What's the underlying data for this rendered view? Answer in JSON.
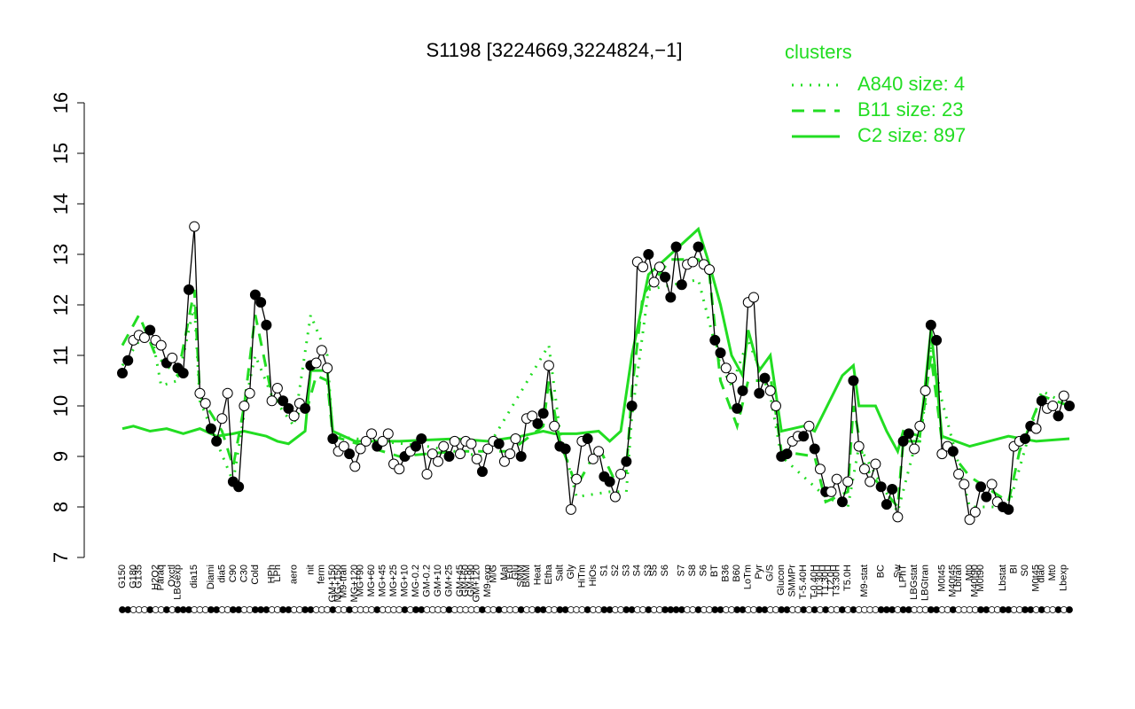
{
  "chart_data": {
    "type": "line",
    "title": "S1198 [3224669,3224824,−1]",
    "legend_title": "clusters",
    "legend_position": "top-right",
    "ylim": [
      7,
      16
    ],
    "yticks": [
      7,
      8,
      9,
      10,
      11,
      12,
      13,
      14,
      15,
      16
    ],
    "xlim": [
      0,
      171
    ],
    "color": "#000000",
    "categories": [
      "G150",
      null,
      "G180",
      "G135",
      null,
      null,
      "H2O2",
      "Paraq",
      null,
      "Oxctl",
      "LBGexp",
      null,
      null,
      "dia15",
      null,
      null,
      "Diami",
      null,
      "dia5",
      null,
      "C90",
      null,
      "C30",
      null,
      "Cold",
      null,
      null,
      "HPh",
      "LPh",
      null,
      null,
      "aero",
      null,
      null,
      "nit",
      null,
      "ferm",
      null,
      "GM+150",
      "MG+150",
      "M9-tran",
      null,
      "MG+120",
      "MG+90",
      null,
      "MG+60",
      null,
      "MG+45",
      null,
      "MG+25",
      null,
      "MG+10",
      null,
      "MG-0.2",
      null,
      "GM-0.2",
      null,
      "GM+10",
      null,
      "GM+25",
      null,
      "GM+45",
      "GM+60",
      "GM+90",
      "GM+120",
      null,
      "M9-exp",
      "M/G",
      null,
      "Mal",
      "Fru",
      "Glu",
      "SMM",
      "BMM",
      null,
      "Heat",
      null,
      "Etha",
      null,
      "Salt",
      null,
      "Gly",
      null,
      "HiTm",
      null,
      "HiOs",
      null,
      "S1",
      null,
      "S2",
      null,
      "S3",
      null,
      "S4",
      null,
      "S3",
      "S5",
      null,
      "S6",
      null,
      null,
      "S7",
      null,
      "S8",
      null,
      "S6",
      null,
      "BT",
      null,
      "B36",
      null,
      "B60",
      null,
      "LoTm",
      null,
      "Pyr",
      null,
      "G/S",
      null,
      "Glucon",
      null,
      "SMMPr",
      null,
      "T-5.40H",
      null,
      "T-0.40H",
      "T0.30H",
      "T1.30H",
      "T2.0H",
      "T3.30H",
      null,
      "T5.0H",
      null,
      null,
      "M9-stat",
      null,
      null,
      "BC",
      null,
      null,
      "Sw",
      "LPhT",
      null,
      "LBGstat",
      null,
      "LBGtran",
      null,
      null,
      "M0t45",
      null,
      "M40t45",
      "Lbtran",
      null,
      "Mt0",
      "M40t90",
      "M0t90",
      null,
      null,
      null,
      "Lbstat",
      null,
      "BI",
      null,
      "S0",
      null,
      "M0t45",
      "dia0",
      null,
      "Mt0",
      null,
      "Lbexp",
      null
    ],
    "values": [
      10.65,
      10.9,
      11.3,
      11.4,
      11.35,
      11.5,
      11.3,
      11.2,
      10.85,
      10.95,
      10.75,
      10.65,
      12.3,
      13.55,
      10.25,
      10.05,
      9.55,
      9.3,
      9.75,
      10.25,
      8.5,
      8.4,
      10.0,
      10.25,
      12.2,
      12.05,
      11.6,
      10.1,
      10.35,
      10.1,
      9.95,
      9.8,
      10.05,
      9.95,
      10.8,
      10.85,
      11.1,
      10.75,
      9.35,
      9.1,
      9.2,
      9.05,
      8.8,
      9.15,
      9.3,
      9.45,
      9.2,
      9.3,
      9.45,
      8.85,
      8.75,
      9.0,
      9.1,
      9.2,
      9.35,
      8.65,
      9.05,
      8.9,
      9.2,
      9.0,
      9.3,
      9.05,
      9.3,
      9.25,
      8.95,
      8.7,
      9.15,
      9.3,
      9.25,
      8.9,
      9.05,
      9.35,
      9.0,
      9.75,
      9.8,
      9.65,
      9.85,
      10.8,
      9.6,
      9.2,
      9.15,
      7.95,
      8.55,
      9.3,
      9.35,
      8.95,
      9.1,
      8.6,
      8.5,
      8.2,
      8.65,
      8.9,
      10.0,
      12.85,
      12.75,
      13.0,
      12.45,
      12.75,
      12.55,
      12.15,
      13.15,
      12.4,
      12.8,
      12.85,
      13.15,
      12.8,
      12.7,
      11.3,
      11.05,
      10.75,
      10.55,
      9.95,
      10.3,
      12.05,
      12.15,
      10.25,
      10.55,
      10.3,
      10.0,
      9.0,
      9.05,
      9.3,
      9.4,
      9.4,
      9.6,
      9.15,
      8.75,
      8.3,
      8.3,
      8.55,
      8.1,
      8.5,
      10.5,
      9.2,
      8.75,
      8.5,
      8.85,
      8.4,
      8.05,
      8.35,
      7.8,
      9.3,
      9.45,
      9.15,
      9.6,
      10.3,
      11.6,
      11.3,
      9.05,
      9.2,
      9.1,
      8.65,
      8.45,
      7.75,
      7.9,
      8.4,
      8.2,
      8.45,
      8.1,
      8.0,
      7.95,
      9.2,
      9.3,
      9.35,
      9.6,
      9.55,
      10.1,
      9.95,
      10.0,
      9.8,
      10.2,
      10.0
    ],
    "filled": [
      1,
      1,
      0,
      0,
      0,
      1,
      0,
      0,
      1,
      0,
      1,
      1,
      1,
      0,
      0,
      0,
      1,
      1,
      0,
      0,
      1,
      1,
      0,
      0,
      1,
      1,
      1,
      0,
      0,
      1,
      1,
      0,
      0,
      1,
      1,
      0,
      0,
      0,
      1,
      0,
      0,
      1,
      0,
      0,
      0,
      0,
      1,
      0,
      0,
      0,
      0,
      1,
      0,
      1,
      1,
      0,
      0,
      0,
      0,
      1,
      0,
      0,
      0,
      0,
      0,
      1,
      0,
      0,
      1,
      0,
      0,
      0,
      1,
      0,
      0,
      1,
      1,
      0,
      0,
      1,
      1,
      0,
      0,
      0,
      1,
      0,
      0,
      1,
      1,
      0,
      0,
      1,
      1,
      0,
      0,
      1,
      0,
      0,
      1,
      1,
      1,
      1,
      0,
      0,
      1,
      0,
      0,
      1,
      1,
      0,
      0,
      1,
      1,
      0,
      0,
      1,
      1,
      0,
      0,
      1,
      1,
      0,
      0,
      1,
      0,
      1,
      0,
      1,
      0,
      0,
      1,
      0,
      1,
      0,
      0,
      0,
      0,
      1,
      1,
      1,
      0,
      1,
      1,
      0,
      0,
      0,
      1,
      1,
      0,
      0,
      1,
      0,
      0,
      0,
      0,
      1,
      1,
      0,
      0,
      1,
      1,
      0,
      0,
      1,
      1,
      0,
      1,
      0,
      0,
      1,
      0,
      1
    ],
    "series": [
      {
        "name": "A840 size: 4",
        "color": "#22dd22",
        "dash": "dotted",
        "x": [
          0,
          5,
          7,
          10,
          13,
          14,
          20,
          23,
          24,
          27,
          31,
          34,
          37,
          38,
          55,
          65,
          77,
          79,
          82,
          88,
          91,
          92,
          95,
          104,
          108,
          110,
          113,
          117,
          119,
          127,
          131,
          133,
          140,
          145,
          146,
          148,
          153,
          160,
          166,
          171
        ],
        "values": [
          10.8,
          11.6,
          10.4,
          10.5,
          12.0,
          10.1,
          8.5,
          10.5,
          11.0,
          10.2,
          9.6,
          11.8,
          11.0,
          9.4,
          9.2,
          9.0,
          11.2,
          9.5,
          8.2,
          8.3,
          8.3,
          9.8,
          12.3,
          12.5,
          10.8,
          10.4,
          11.3,
          10.2,
          9.0,
          8.2,
          8.0,
          9.2,
          7.9,
          10.0,
          11.2,
          10.1,
          8.0,
          8.0,
          10.3,
          10.0
        ]
      },
      {
        "name": "B11 size: 23",
        "color": "#22dd22",
        "dash": "dashed",
        "x": [
          0,
          3,
          6,
          10,
          13,
          14,
          18,
          20,
          22,
          24,
          27,
          30,
          33,
          35,
          37,
          38,
          50,
          60,
          70,
          76,
          77,
          79,
          82,
          86,
          89,
          91,
          92,
          94,
          99,
          104,
          106,
          108,
          111,
          113,
          115,
          117,
          119,
          125,
          127,
          131,
          132,
          134,
          140,
          141,
          144,
          146,
          148,
          153,
          160,
          162,
          166,
          171
        ],
        "values": [
          11.2,
          11.8,
          11.0,
          10.6,
          12.3,
          10.2,
          9.5,
          8.8,
          10.0,
          11.8,
          10.2,
          9.9,
          9.8,
          10.6,
          10.5,
          9.4,
          9.0,
          9.1,
          9.1,
          9.6,
          10.5,
          9.3,
          8.4,
          9.2,
          8.5,
          8.7,
          10.3,
          12.2,
          12.9,
          12.9,
          12.6,
          10.5,
          9.6,
          10.5,
          10.5,
          10.6,
          9.1,
          9.0,
          8.1,
          8.3,
          10.0,
          8.8,
          8.0,
          9.3,
          9.3,
          11.0,
          9.3,
          8.6,
          8.1,
          9.1,
          10.2,
          10.0
        ]
      },
      {
        "name": "C2 size: 897",
        "color": "#22dd22",
        "dash": "solid",
        "x": [
          0,
          2,
          5,
          8,
          11,
          14,
          17,
          20,
          22,
          26,
          28,
          30,
          33,
          34,
          37,
          38,
          42,
          50,
          60,
          66,
          72,
          76,
          78,
          82,
          86,
          88,
          90,
          92,
          95,
          99,
          104,
          106,
          108,
          110,
          112,
          113,
          115,
          117,
          119,
          123,
          125,
          130,
          132,
          133,
          136,
          138,
          140,
          141,
          144,
          146,
          147,
          148,
          153,
          160,
          165,
          171
        ],
        "values": [
          9.55,
          9.6,
          9.5,
          9.55,
          9.45,
          9.55,
          9.4,
          9.45,
          9.5,
          9.4,
          9.3,
          9.25,
          9.5,
          10.7,
          10.7,
          9.5,
          9.3,
          9.3,
          9.35,
          9.3,
          9.4,
          9.5,
          9.45,
          9.45,
          9.5,
          9.3,
          9.5,
          11.0,
          12.6,
          13.0,
          13.5,
          12.8,
          12.0,
          11.0,
          10.6,
          11.5,
          10.7,
          11.0,
          9.5,
          9.6,
          9.5,
          10.6,
          10.8,
          10.0,
          10.0,
          9.5,
          9.1,
          9.5,
          9.4,
          11.5,
          10.5,
          9.4,
          9.2,
          9.4,
          9.3,
          9.35
        ]
      }
    ]
  }
}
